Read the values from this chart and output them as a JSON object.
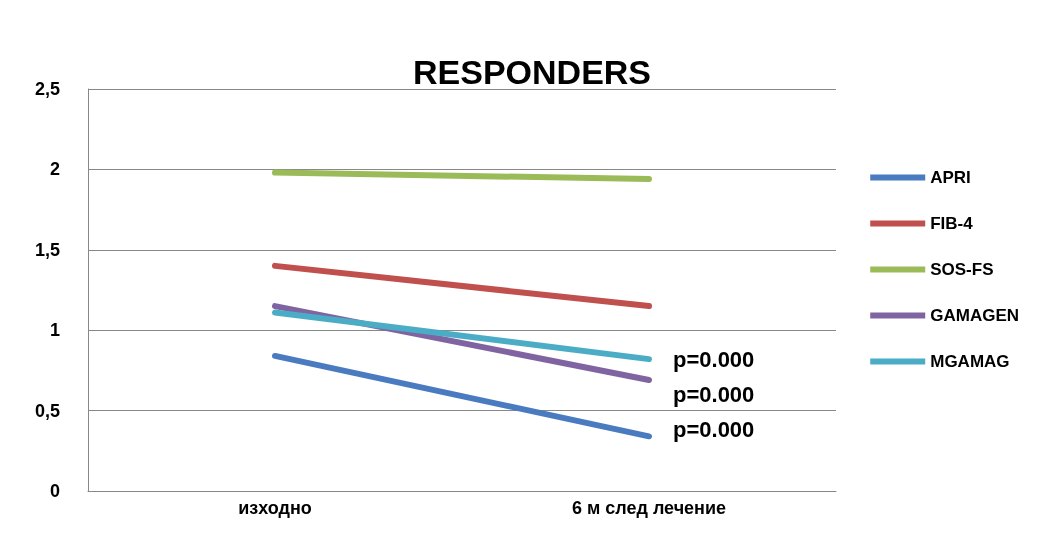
{
  "chart_data": {
    "type": "line",
    "title": "RESPONDERS",
    "categories": [
      "изходно",
      "6 м след лечение"
    ],
    "series": [
      {
        "name": "APRI",
        "color": "#4a7bc0",
        "values": [
          0.84,
          0.34
        ]
      },
      {
        "name": "FIB-4",
        "color": "#c0504d",
        "values": [
          1.4,
          1.15
        ]
      },
      {
        "name": "SOS-FS",
        "color": "#9bbb59",
        "values": [
          1.98,
          1.94
        ]
      },
      {
        "name": "GAMAGEN",
        "color": "#8064a2",
        "values": [
          1.15,
          0.69
        ]
      },
      {
        "name": "MGAMAG",
        "color": "#4bacc6",
        "values": [
          1.11,
          0.82
        ]
      }
    ],
    "ylim": [
      0,
      2.5
    ],
    "yticks": [
      0,
      {
        "value": 0.5,
        "label": "0,5"
      },
      1,
      {
        "value": 1.5,
        "label": "1,5"
      },
      2,
      {
        "value": 2.5,
        "label": "2,5"
      }
    ],
    "grid": "y",
    "legend": "right",
    "marker": "none",
    "line_style": "solid",
    "annotations": [
      "p=0.000",
      "p=0.000",
      "p=0.000"
    ]
  }
}
